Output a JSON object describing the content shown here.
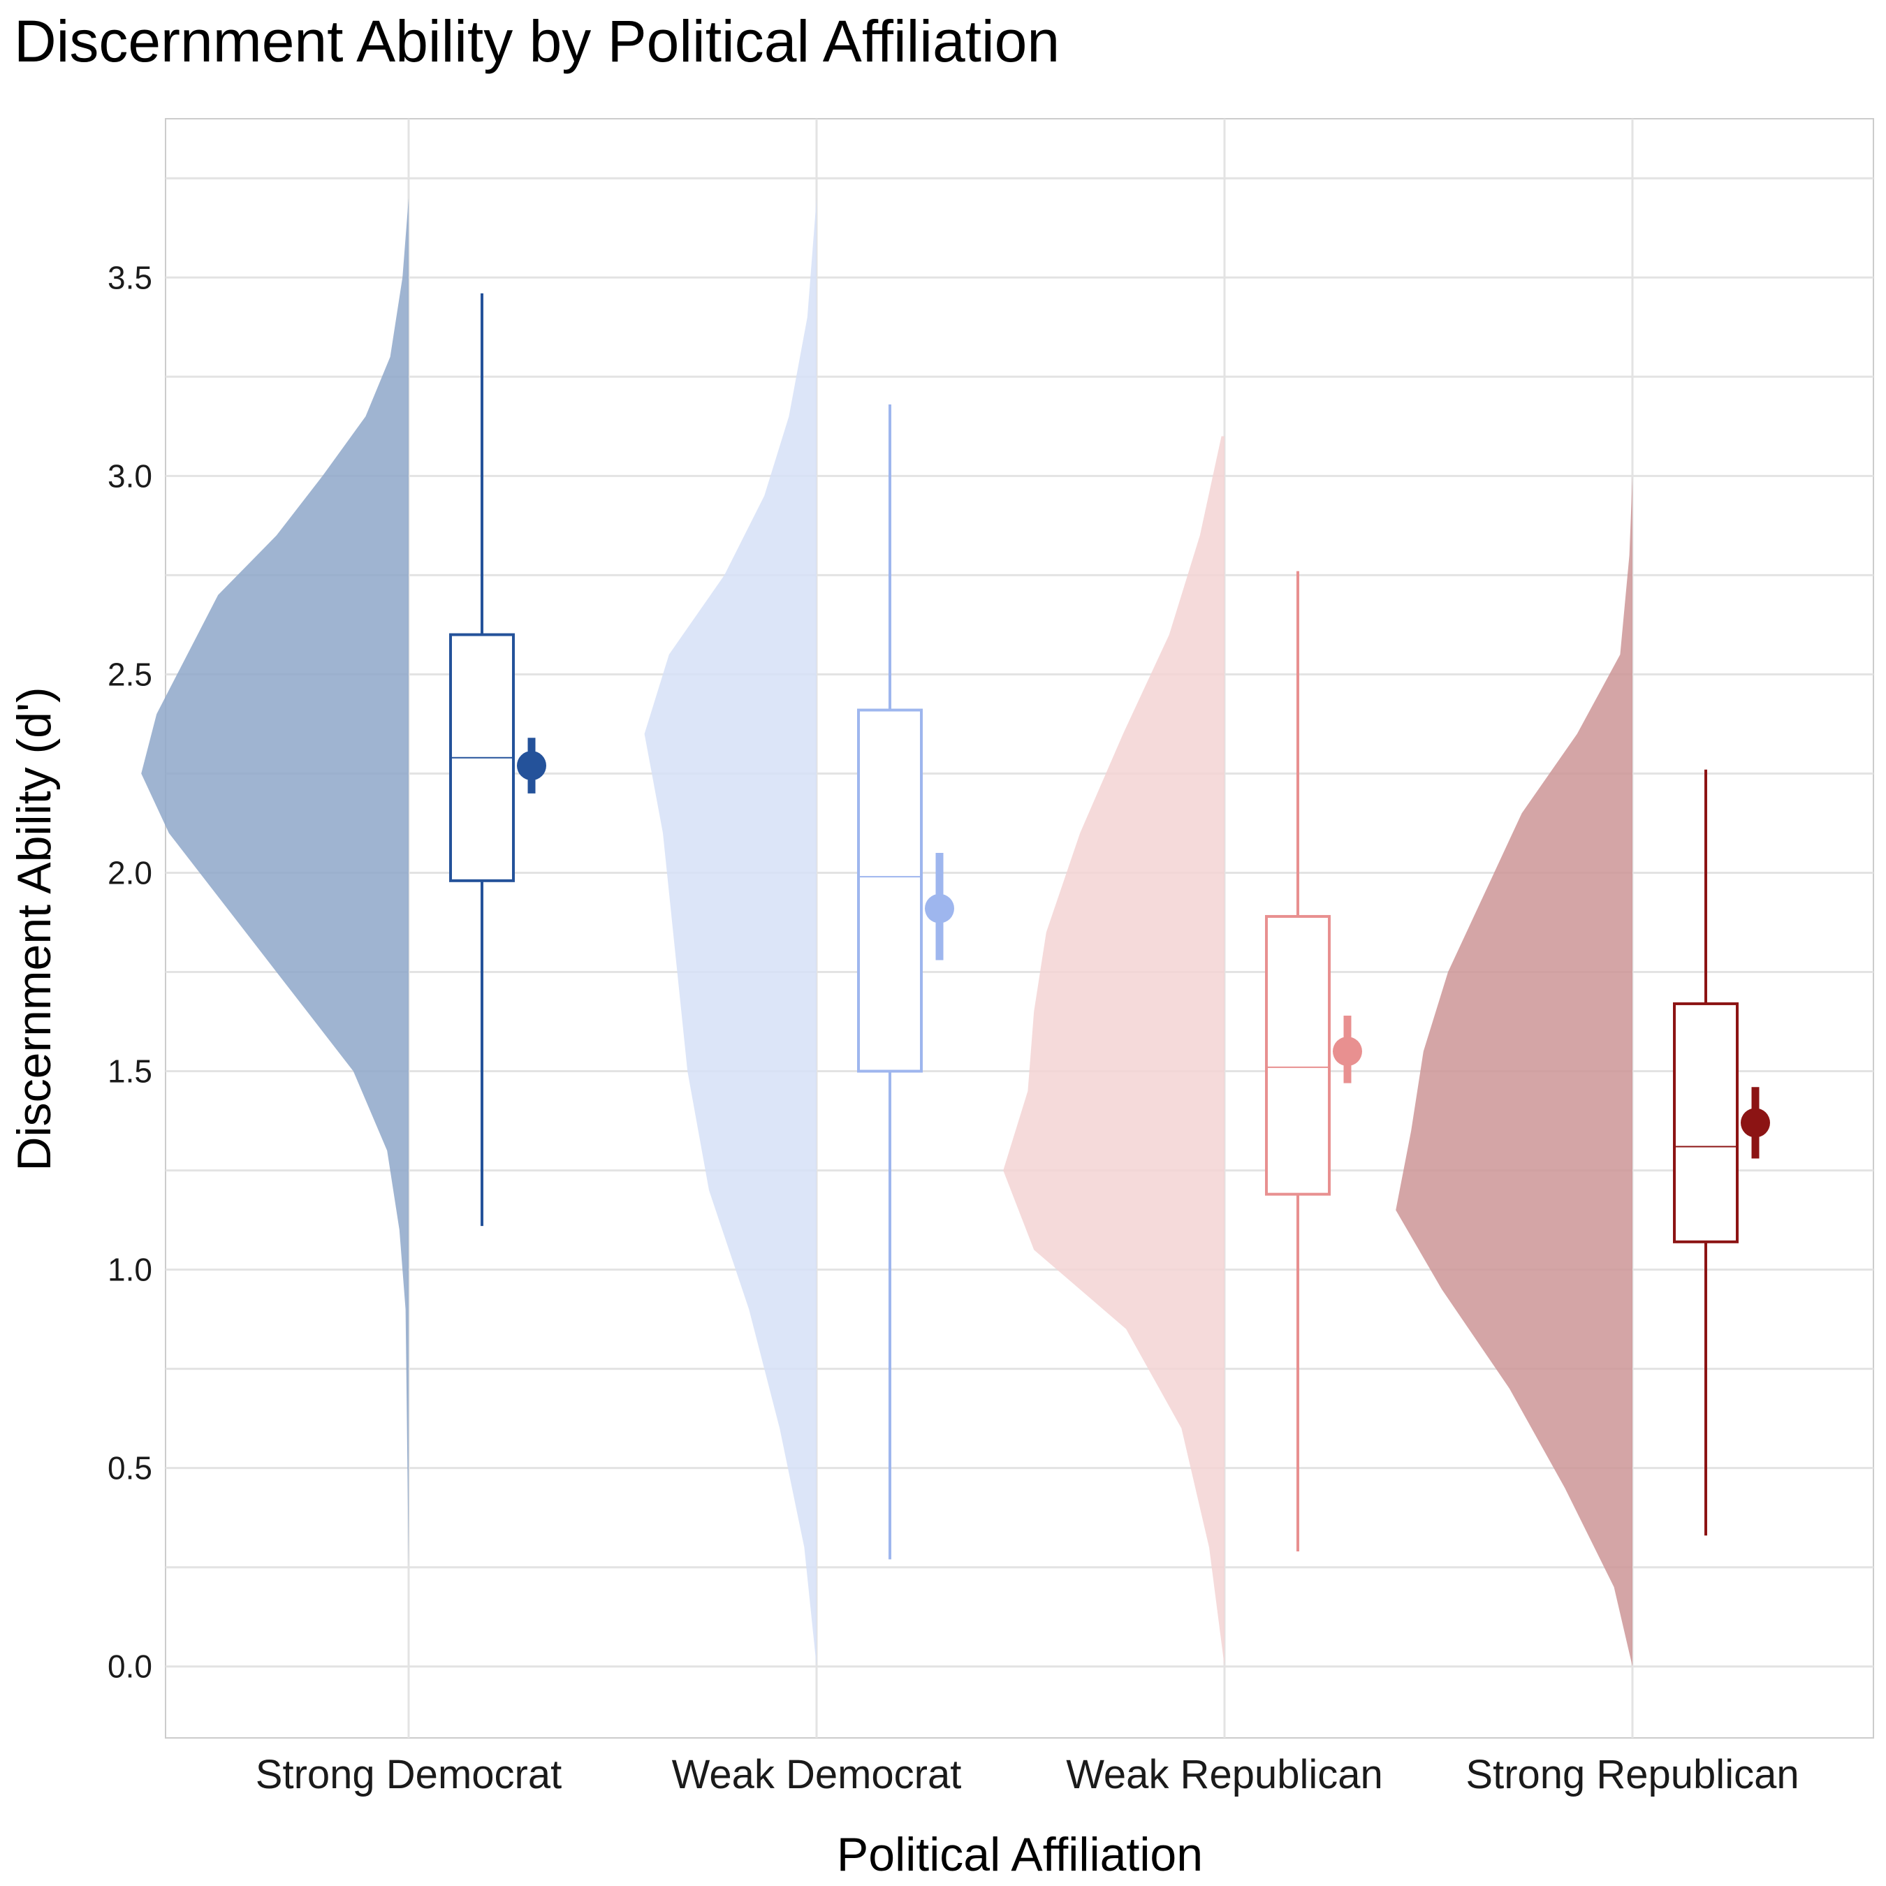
{
  "chart_data": {
    "type": "raincloud",
    "title": "Discernment Ability by Political Affiliation",
    "xlabel": "Political Affiliation",
    "ylabel": "Discernment Ability (d')",
    "ylim": [
      -0.18,
      3.9
    ],
    "yticks": [
      "0.0",
      "0.5",
      "1.0",
      "1.5",
      "2.0",
      "2.5",
      "3.0",
      "3.5"
    ],
    "grid": true,
    "legend": "none",
    "categories": [
      "Strong Democrat",
      "Weak Democrat",
      "Weak Republican",
      "Strong Republican"
    ],
    "series": [
      {
        "category": "Strong Democrat",
        "color": "#24529a",
        "fill": "#8ea7c9",
        "box": {
          "whisker_low": 1.11,
          "q1": 1.98,
          "median": 2.29,
          "q3": 2.6,
          "whisker_high": 3.46
        },
        "mean": 2.27,
        "ci": [
          2.2,
          2.34
        ],
        "density": [
          [
            0.25,
            0.0
          ],
          [
            0.9,
            0.01
          ],
          [
            1.1,
            0.03
          ],
          [
            1.3,
            0.07
          ],
          [
            1.5,
            0.18
          ],
          [
            1.7,
            0.38
          ],
          [
            1.9,
            0.58
          ],
          [
            2.1,
            0.78
          ],
          [
            2.25,
            0.87
          ],
          [
            2.4,
            0.82
          ],
          [
            2.55,
            0.72
          ],
          [
            2.7,
            0.62
          ],
          [
            2.85,
            0.43
          ],
          [
            3.0,
            0.28
          ],
          [
            3.15,
            0.14
          ],
          [
            3.3,
            0.06
          ],
          [
            3.5,
            0.02
          ],
          [
            3.7,
            0.0
          ]
        ]
      },
      {
        "category": "Weak Democrat",
        "color": "#9eb6ee",
        "fill": "#d6e0f7",
        "box": {
          "whisker_low": 0.27,
          "q1": 1.5,
          "median": 1.99,
          "q3": 2.41,
          "whisker_high": 3.18
        },
        "mean": 1.91,
        "ci": [
          1.78,
          2.05
        ],
        "density": [
          [
            0.0,
            0.0
          ],
          [
            0.3,
            0.04
          ],
          [
            0.6,
            0.12
          ],
          [
            0.9,
            0.22
          ],
          [
            1.2,
            0.35
          ],
          [
            1.5,
            0.42
          ],
          [
            1.8,
            0.46
          ],
          [
            2.1,
            0.5
          ],
          [
            2.35,
            0.56
          ],
          [
            2.55,
            0.48
          ],
          [
            2.75,
            0.3
          ],
          [
            2.95,
            0.17
          ],
          [
            3.15,
            0.09
          ],
          [
            3.4,
            0.03
          ],
          [
            3.7,
            0.0
          ]
        ]
      },
      {
        "category": "Weak Republican",
        "color": "#e89090",
        "fill": "#f3d4d4",
        "box": {
          "whisker_low": 0.29,
          "q1": 1.19,
          "median": 1.51,
          "q3": 1.89,
          "whisker_high": 2.76
        },
        "mean": 1.55,
        "ci": [
          1.47,
          1.64
        ],
        "density": [
          [
            0.0,
            0.0
          ],
          [
            0.3,
            0.05
          ],
          [
            0.6,
            0.14
          ],
          [
            0.85,
            0.32
          ],
          [
            1.05,
            0.62
          ],
          [
            1.25,
            0.72
          ],
          [
            1.45,
            0.64
          ],
          [
            1.65,
            0.62
          ],
          [
            1.85,
            0.58
          ],
          [
            2.1,
            0.47
          ],
          [
            2.35,
            0.33
          ],
          [
            2.6,
            0.18
          ],
          [
            2.85,
            0.08
          ],
          [
            3.1,
            0.01
          ]
        ]
      },
      {
        "category": "Strong Republican",
        "color": "#8c1414",
        "fill": "#cc9597",
        "box": {
          "whisker_low": 0.33,
          "q1": 1.07,
          "median": 1.31,
          "q3": 1.67,
          "whisker_high": 2.26
        },
        "mean": 1.37,
        "ci": [
          1.28,
          1.46
        ],
        "density": [
          [
            0.0,
            0.0
          ],
          [
            0.2,
            0.06
          ],
          [
            0.45,
            0.22
          ],
          [
            0.7,
            0.4
          ],
          [
            0.95,
            0.62
          ],
          [
            1.15,
            0.77
          ],
          [
            1.35,
            0.72
          ],
          [
            1.55,
            0.68
          ],
          [
            1.75,
            0.6
          ],
          [
            1.95,
            0.48
          ],
          [
            2.15,
            0.36
          ],
          [
            2.35,
            0.18
          ],
          [
            2.55,
            0.04
          ],
          [
            2.8,
            0.01
          ],
          [
            3.0,
            0.0
          ]
        ]
      }
    ]
  }
}
